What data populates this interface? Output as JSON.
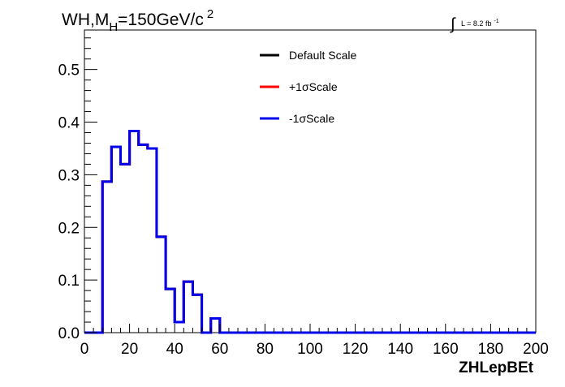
{
  "chart_data": {
    "type": "line",
    "title": {
      "main": "WH,M",
      "sub": "H",
      "rest": "=150GeV/c",
      "sup": "2"
    },
    "lumi": {
      "integral_symbol": "∫",
      "text": "L = 8.2 fb",
      "sup": "-1"
    },
    "xlabel": "ZHLepBEt",
    "ylabel": "",
    "xlim": [
      0,
      200
    ],
    "ylim": [
      0,
      0.575
    ],
    "x_ticks": [
      0,
      20,
      40,
      60,
      80,
      100,
      120,
      140,
      160,
      180,
      200
    ],
    "x_tick_labels": [
      "0",
      "20",
      "40",
      "60",
      "80",
      "100",
      "120",
      "140",
      "160",
      "180",
      "200"
    ],
    "y_ticks": [
      0,
      0.1,
      0.2,
      0.3,
      0.4,
      0.5
    ],
    "y_tick_labels": [
      "0.0",
      "0.1",
      "0.2",
      "0.3",
      "0.4",
      "0.5"
    ],
    "grid": false,
    "legend_position": "top-center",
    "bin_width": 4,
    "bin_edges_start": 0,
    "series": [
      {
        "name": "Default Scale",
        "color": "#000000",
        "values": [
          0,
          0,
          0.287,
          0.353,
          0.32,
          0.383,
          0.357,
          0.35,
          0.182,
          0.083,
          0.02,
          0.097,
          0.072,
          0,
          0.027,
          0,
          0,
          0,
          0,
          0,
          0,
          0,
          0,
          0,
          0,
          0,
          0,
          0,
          0,
          0,
          0,
          0,
          0,
          0,
          0,
          0,
          0,
          0,
          0,
          0,
          0,
          0,
          0,
          0,
          0,
          0,
          0,
          0,
          0,
          0
        ]
      },
      {
        "name": "+1σScale",
        "color": "#ff0000",
        "values": [
          0,
          0,
          0.287,
          0.353,
          0.32,
          0.383,
          0.357,
          0.35,
          0.182,
          0.083,
          0.02,
          0.097,
          0.072,
          0,
          0.027,
          0,
          0,
          0,
          0,
          0,
          0,
          0,
          0,
          0,
          0,
          0,
          0,
          0,
          0,
          0,
          0,
          0,
          0,
          0,
          0,
          0,
          0,
          0,
          0,
          0,
          0,
          0,
          0,
          0,
          0,
          0,
          0,
          0,
          0,
          0
        ]
      },
      {
        "name": "-1σScale",
        "color": "#0000ee",
        "values": [
          0,
          0,
          0.287,
          0.353,
          0.32,
          0.383,
          0.357,
          0.35,
          0.182,
          0.083,
          0.02,
          0.097,
          0.072,
          0,
          0.027,
          0,
          0,
          0,
          0,
          0,
          0,
          0,
          0,
          0,
          0,
          0,
          0,
          0,
          0,
          0,
          0,
          0,
          0,
          0,
          0,
          0,
          0,
          0,
          0,
          0,
          0,
          0,
          0,
          0,
          0,
          0,
          0,
          0,
          0,
          0
        ]
      }
    ]
  }
}
